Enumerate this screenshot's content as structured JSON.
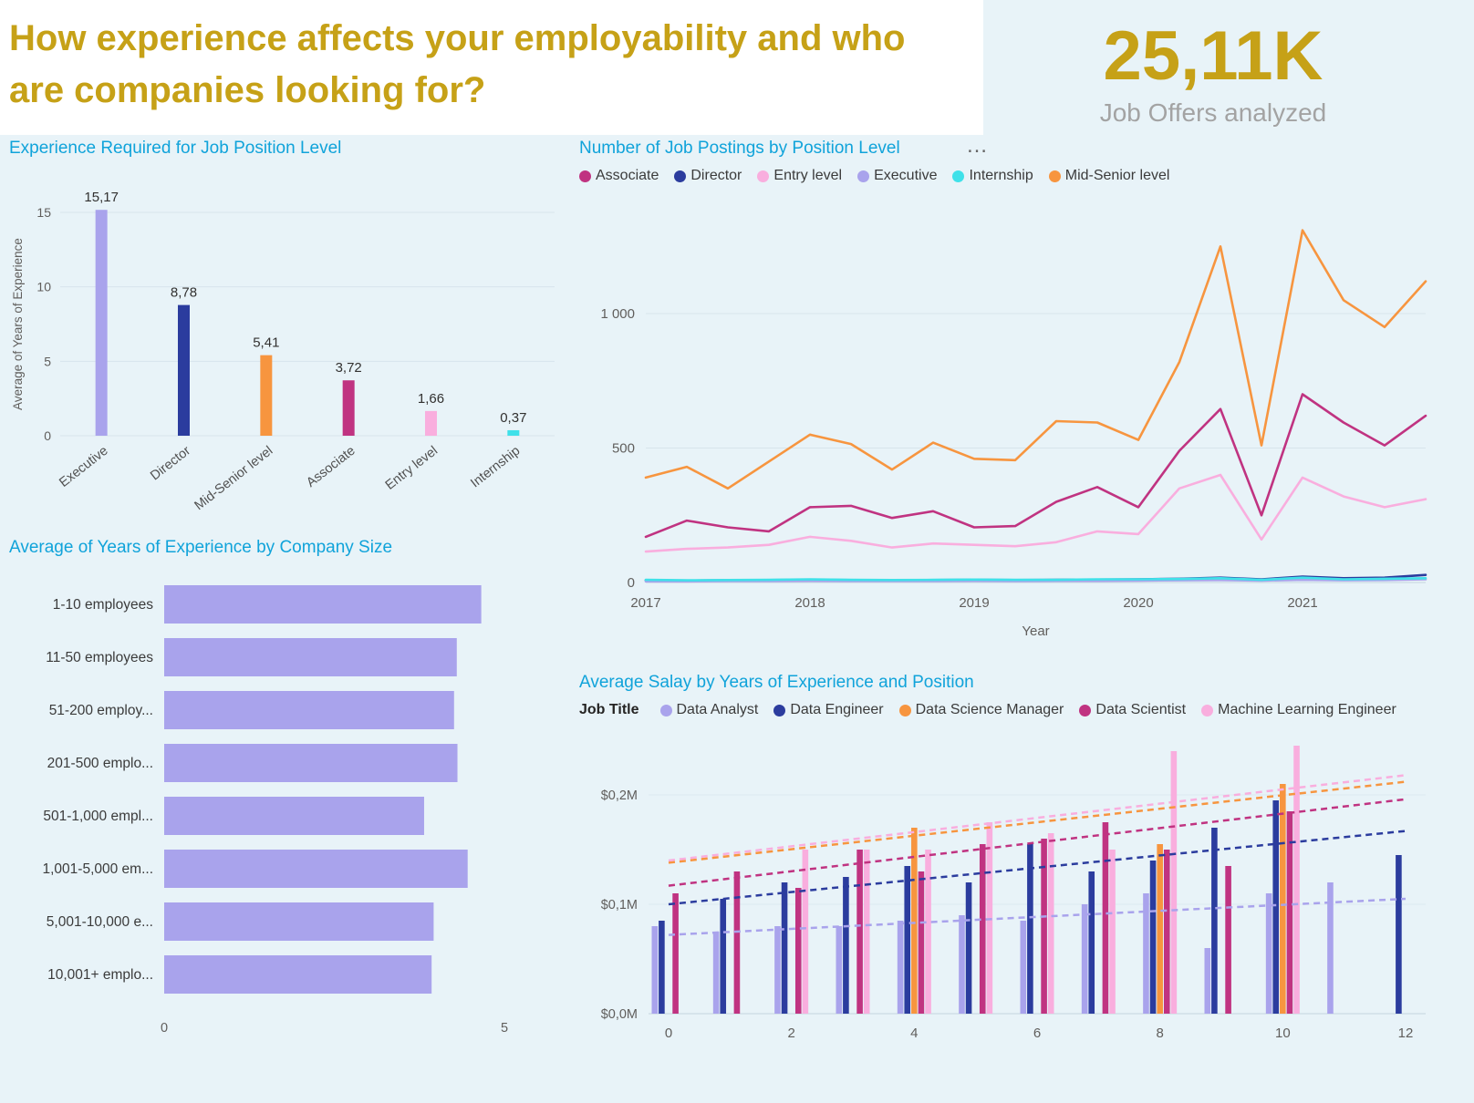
{
  "header": {
    "title": "How experience affects your employability and who are companies looking for?",
    "kpi_value": "25,11K",
    "kpi_label": "Job Offers analyzed"
  },
  "icons": {
    "more_options": "…"
  },
  "colors": {
    "gold": "#c6a117",
    "title_cyan": "#10a3da",
    "background": "#e8f3f8",
    "grid": "#d7e4ec",
    "axis_text": "#605e5c",
    "light_purple": "#a9a3ec",
    "dark_blue": "#2b3c9e",
    "orange": "#f7953f",
    "magenta": "#c03381",
    "pink": "#f9aede",
    "cyan": "#3fe1e9"
  },
  "chart_data": [
    {
      "id": "experience-required",
      "type": "bar",
      "title": "Experience Required for Job Position Level",
      "ylabel": "Average of Years of Experience",
      "categories": [
        "Executive",
        "Director",
        "Mid-Senior level",
        "Associate",
        "Entry level",
        "Internship"
      ],
      "values": [
        15.17,
        8.78,
        5.41,
        3.72,
        1.66,
        0.37
      ],
      "labels": [
        "15,17",
        "8,78",
        "5,41",
        "3,72",
        "1,66",
        "0,37"
      ],
      "colors": [
        "#a9a3ec",
        "#2b3c9e",
        "#f7953f",
        "#c03381",
        "#f9aede",
        "#3fe1e9"
      ],
      "yticks": [
        0,
        5,
        10,
        15
      ],
      "ylim": [
        0,
        16.5
      ]
    },
    {
      "id": "postings-by-level",
      "type": "line",
      "title": "Number of Job Postings by Position Level",
      "xlabel": "Year",
      "x": [
        2017,
        2017.25,
        2017.5,
        2017.75,
        2018,
        2018.25,
        2018.5,
        2018.75,
        2019,
        2019.25,
        2019.5,
        2019.75,
        2020,
        2020.25,
        2020.5,
        2020.75,
        2021,
        2021.25,
        2021.5,
        2021.75
      ],
      "xticks": [
        2017,
        2018,
        2019,
        2020,
        2021
      ],
      "yticks": [
        0,
        500,
        1000
      ],
      "ytick_labels": [
        "0",
        "500",
        "1 000"
      ],
      "ylim": [
        0,
        1350
      ],
      "series": [
        {
          "name": "Associate",
          "color": "#c03381",
          "values": [
            170,
            230,
            205,
            190,
            280,
            285,
            240,
            265,
            205,
            210,
            300,
            355,
            280,
            490,
            645,
            250,
            700,
            595,
            510,
            620
          ]
        },
        {
          "name": "Director",
          "color": "#2b3c9e",
          "values": [
            8,
            7,
            8,
            9,
            10,
            9,
            8,
            9,
            10,
            9,
            10,
            11,
            12,
            14,
            18,
            12,
            22,
            16,
            18,
            28
          ]
        },
        {
          "name": "Entry level",
          "color": "#f9aede",
          "values": [
            115,
            125,
            130,
            140,
            170,
            155,
            130,
            145,
            140,
            135,
            150,
            190,
            180,
            350,
            400,
            160,
            390,
            320,
            280,
            310
          ]
        },
        {
          "name": "Executive",
          "color": "#a9a3ec",
          "values": [
            4,
            4,
            5,
            5,
            6,
            5,
            5,
            5,
            6,
            5,
            6,
            6,
            7,
            8,
            9,
            7,
            10,
            8,
            9,
            12
          ]
        },
        {
          "name": "Internship",
          "color": "#3fe1e9",
          "values": [
            10,
            8,
            9,
            10,
            12,
            10,
            9,
            10,
            11,
            10,
            10,
            12,
            12,
            13,
            16,
            10,
            18,
            12,
            14,
            16
          ]
        },
        {
          "name": "Mid-Senior level",
          "color": "#f7953f",
          "values": [
            390,
            430,
            350,
            450,
            550,
            515,
            420,
            520,
            460,
            455,
            600,
            595,
            530,
            820,
            1250,
            510,
            1310,
            1050,
            950,
            1120
          ]
        }
      ]
    },
    {
      "id": "experience-by-company-size",
      "type": "bar-horizontal",
      "title": "Average of Years of Experience by Company Size",
      "categories": [
        "1-10 employees",
        "11-50 employees",
        "51-200 employ...",
        "201-500 emplo...",
        "501-1,000 empl...",
        "1,001-5,000 em...",
        "5,001-10,000 e...",
        "10,001+ emplo..."
      ],
      "values": [
        4.66,
        4.3,
        4.26,
        4.31,
        3.82,
        4.46,
        3.96,
        3.93
      ],
      "color": "#a9a3ec",
      "xticks": [
        0,
        5
      ],
      "xlim": [
        0,
        5
      ]
    },
    {
      "id": "salary-by-experience",
      "type": "bar-grouped",
      "title": "Average Salay by Years of Experience and Position",
      "legend_title": "Job Title",
      "x": [
        0,
        1,
        2,
        3,
        4,
        5,
        6,
        7,
        8,
        9,
        10,
        11,
        12
      ],
      "xticks": [
        0,
        2,
        4,
        6,
        8,
        10,
        12
      ],
      "yticks": [
        0,
        0.1,
        0.2
      ],
      "ytick_labels": [
        "$0,0M",
        "$0,1M",
        "$0,2M"
      ],
      "ylim": [
        0,
        0.26
      ],
      "series": [
        {
          "name": "Data Analyst",
          "color": "#a9a3ec",
          "values": [
            0.08,
            0.075,
            0.08,
            0.08,
            0.085,
            0.09,
            0.085,
            0.1,
            0.11,
            0.06,
            0.11,
            0.12,
            null
          ],
          "trend": {
            "y_start": 0.072,
            "y_end": 0.105
          }
        },
        {
          "name": "Data Engineer",
          "color": "#2b3c9e",
          "values": [
            0.085,
            0.105,
            0.12,
            0.125,
            0.135,
            0.12,
            0.155,
            0.13,
            0.14,
            0.17,
            0.195,
            null,
            0.145
          ],
          "trend": {
            "y_start": 0.1,
            "y_end": 0.167
          }
        },
        {
          "name": "Data Science Manager",
          "color": "#f7953f",
          "values": [
            null,
            null,
            null,
            null,
            0.17,
            null,
            null,
            null,
            0.155,
            null,
            0.21,
            null,
            null
          ],
          "trend": {
            "y_start": 0.138,
            "y_end": 0.212
          }
        },
        {
          "name": "Data Scientist",
          "color": "#c03381",
          "values": [
            0.11,
            0.13,
            0.115,
            0.15,
            0.13,
            0.155,
            0.16,
            0.175,
            0.15,
            0.135,
            0.185,
            null,
            null
          ],
          "trend": {
            "y_start": 0.117,
            "y_end": 0.196
          }
        },
        {
          "name": "Machine Learning Engineer",
          "color": "#f9aede",
          "values": [
            null,
            null,
            0.15,
            0.15,
            0.15,
            0.175,
            0.165,
            0.15,
            0.24,
            null,
            0.245,
            null,
            null
          ],
          "trend": {
            "y_start": 0.14,
            "y_end": 0.218
          }
        }
      ]
    }
  ]
}
